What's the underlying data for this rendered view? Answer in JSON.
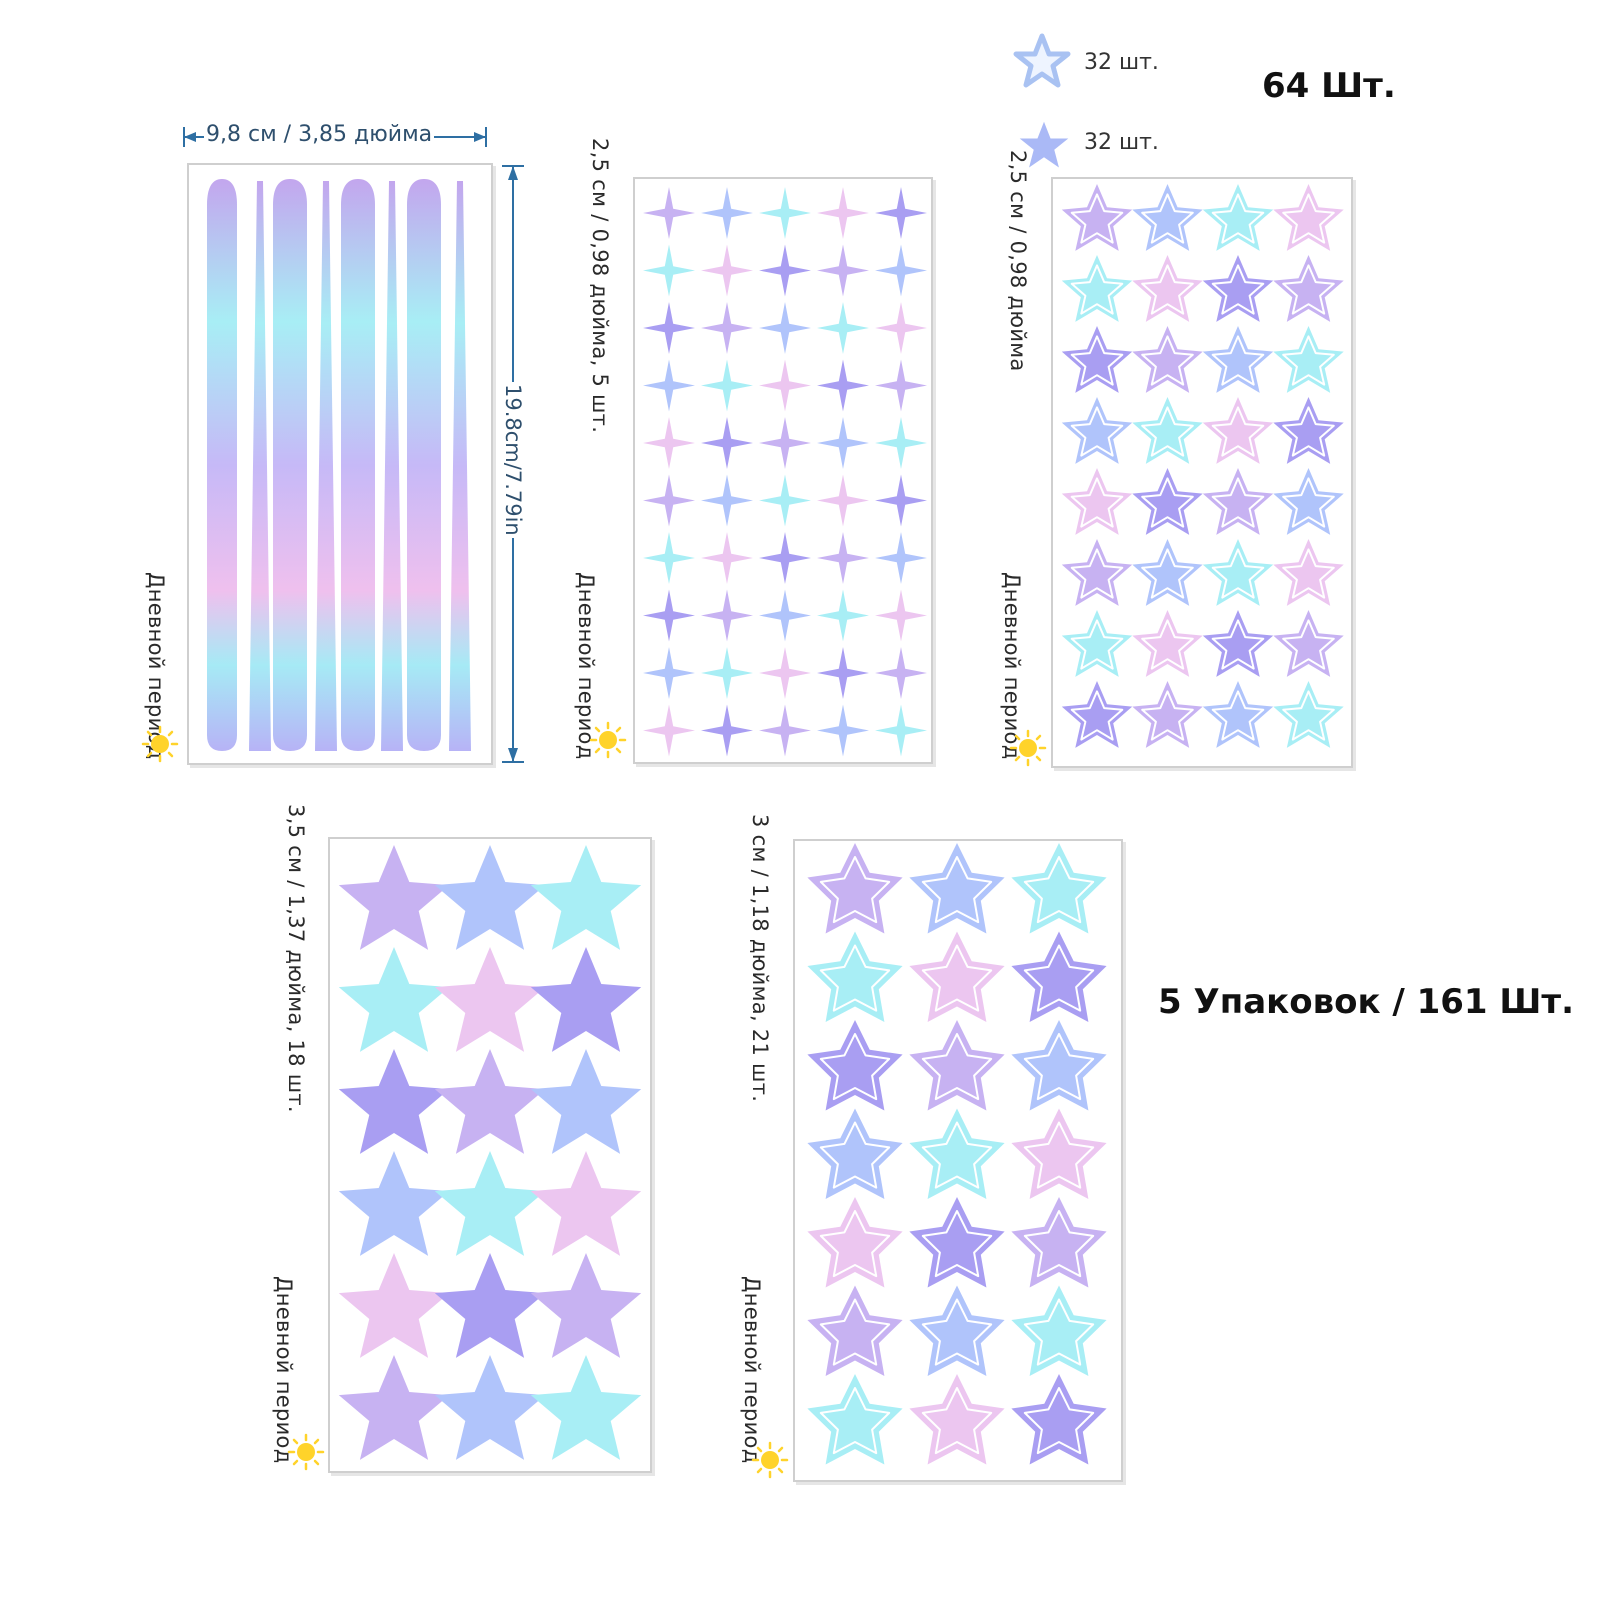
{
  "summary": {
    "total_top": "64 Шт.",
    "total_all": "5 Упаковок / 161 Шт."
  },
  "legend": {
    "outline_star": "32 шт.",
    "solid_star": "32 шт."
  },
  "sheets": [
    {
      "id": "stripes",
      "caption": "",
      "dim_width": "9,8 см / 3,85 дюйма",
      "dim_height": "19.8cm/7.79in",
      "mode": "Дневной период"
    },
    {
      "id": "sparkles",
      "caption": "2,5 см / 0,98 дюйма, 5 шт.",
      "mode": "Дневной период"
    },
    {
      "id": "small-stars",
      "caption": "2,5 см / 0,98 дюйма",
      "mode": "Дневной период"
    },
    {
      "id": "large-stars",
      "caption": "3,5 см / 1,37 дюйма, 18 шт.",
      "mode": "Дневной период"
    },
    {
      "id": "medium-stars",
      "caption": "3 см / 1,18 дюйма, 21 шт.",
      "mode": "Дневной период"
    }
  ],
  "colors": {
    "lilac": "#c7b2f2",
    "blue": "#b0c4fb",
    "cyan": "#a8eef5",
    "pink": "#ecc6f0",
    "violet": "#a99ef2",
    "dimension": "#2e6fa3",
    "sun": "#ffd32a"
  }
}
